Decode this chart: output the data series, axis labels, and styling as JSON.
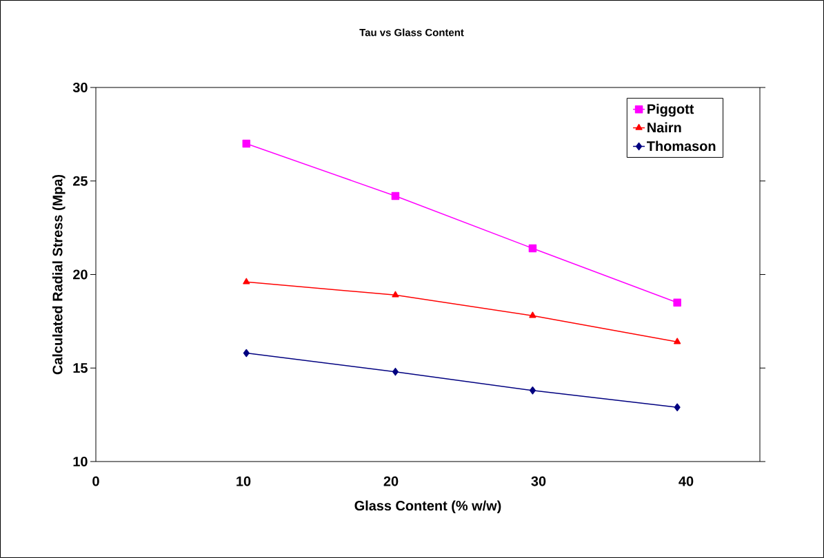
{
  "chart_data": {
    "type": "line",
    "title": "Tau vs Glass Content",
    "xlabel": "Glass Content (% w/w)",
    "ylabel": "Calculated Radial Stress (Mpa)",
    "x": [
      10.2,
      20.3,
      29.6,
      39.4
    ],
    "series": [
      {
        "name": "Piggott",
        "color": "#ff00ff",
        "marker": "square",
        "values": [
          27.0,
          24.2,
          21.4,
          18.5
        ]
      },
      {
        "name": "Nairn",
        "color": "#ff0000",
        "marker": "triangle",
        "values": [
          19.6,
          18.9,
          17.8,
          16.4
        ]
      },
      {
        "name": "Thomason",
        "color": "#000080",
        "marker": "diamond",
        "values": [
          15.8,
          14.8,
          13.8,
          12.9
        ]
      }
    ],
    "xlim": [
      0,
      45
    ],
    "ylim": [
      10,
      30
    ],
    "xticks": [
      0,
      10,
      20,
      30,
      40
    ],
    "yticks": [
      10,
      15,
      20,
      25,
      30
    ],
    "grid": false,
    "legend": "top right",
    "line_style": "solid"
  }
}
